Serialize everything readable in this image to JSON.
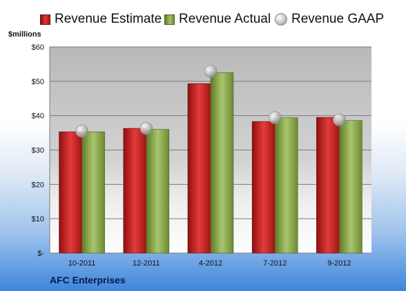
{
  "legend": {
    "estimate": "Revenue Estimate",
    "actual": "Revenue Actual",
    "gaap": "Revenue GAAP"
  },
  "unit_label": "$millions",
  "company": "AFC Enterprises",
  "colors": {
    "estimate": "#c81e1e",
    "actual": "#8fae52",
    "gaap": "#c0c0c0",
    "plot_background": "#c4c4c4"
  },
  "chart_data": {
    "type": "bar",
    "categories": [
      "10-2011",
      "12-2011",
      "4-2012",
      "7-2012",
      "9-2012"
    ],
    "series": [
      {
        "name": "Revenue Estimate",
        "values": [
          35.3,
          36.3,
          49.3,
          38.3,
          39.5
        ]
      },
      {
        "name": "Revenue Actual",
        "values": [
          35.3,
          36.0,
          52.5,
          39.4,
          38.6
        ]
      },
      {
        "name": "Revenue GAAP",
        "values": [
          35.5,
          36.3,
          52.9,
          39.4,
          38.8
        ]
      }
    ],
    "ylim": [
      0,
      60
    ],
    "ytick_values": [
      0,
      10,
      20,
      30,
      40,
      50,
      60
    ],
    "ytick_labels": [
      "$-",
      "$10",
      "$20",
      "$30",
      "$40",
      "$50",
      "$60"
    ],
    "ylabel": "$millions",
    "legend_position": "top",
    "grid": true
  }
}
